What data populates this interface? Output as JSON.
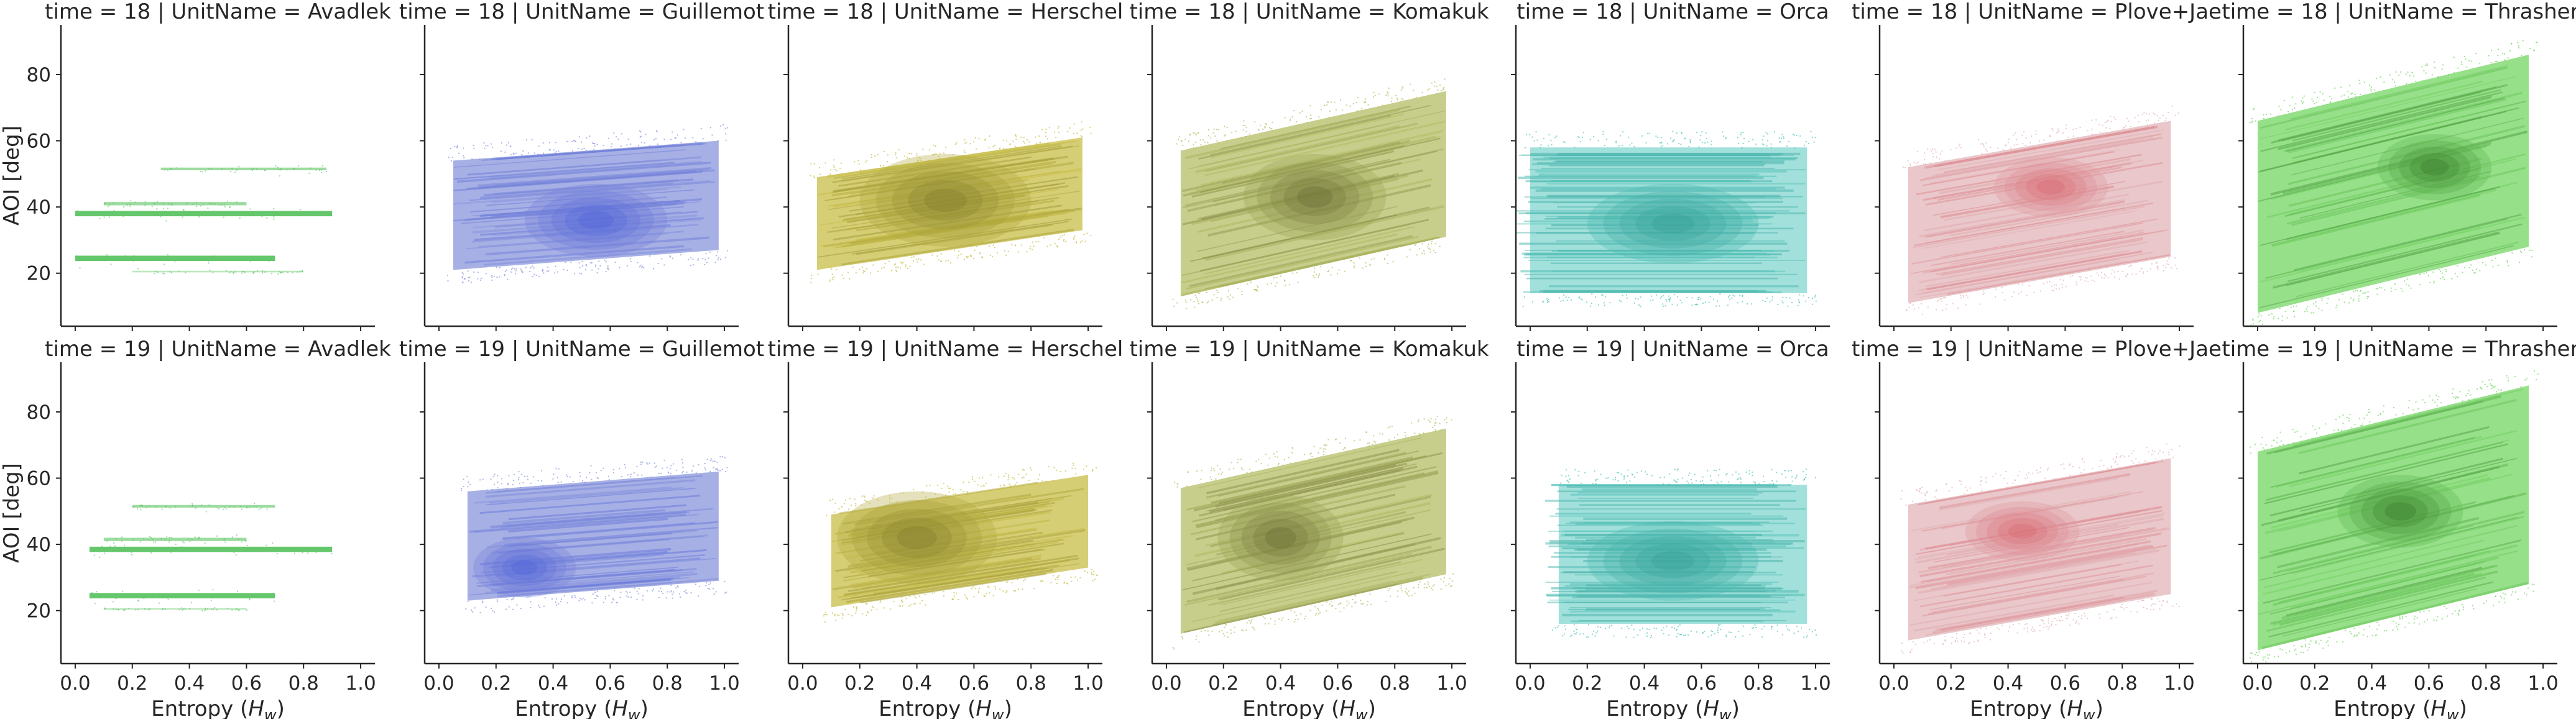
{
  "chart_data": {
    "type": "scatter",
    "xlabel": "Entropy (H_w)",
    "xlabel_parts": {
      "prefix": "Entropy (",
      "var": "H",
      "sub": "w",
      "suffix": ")"
    },
    "ylabel": "AOI [deg]",
    "xlim": [
      -0.05,
      1.05
    ],
    "ylim": [
      4,
      95
    ],
    "xticks": [
      0.0,
      0.2,
      0.4,
      0.6,
      0.8,
      1.0
    ],
    "xtick_labels": [
      "0.0",
      "0.2",
      "0.4",
      "0.6",
      "0.8",
      "1.0"
    ],
    "yticks": [
      20,
      40,
      60,
      80
    ],
    "ytick_labels": [
      "20",
      "40",
      "60",
      "80"
    ],
    "grid": false,
    "rows": [
      18,
      19
    ],
    "units": [
      {
        "name": "Avadlek",
        "color": "#5cc463",
        "style": "bands",
        "bands": [
          {
            "time": 18,
            "y": 24.5,
            "x0": 0.0,
            "x1": 0.7,
            "w": 1.6,
            "alpha": 0.95
          },
          {
            "time": 18,
            "y": 38,
            "x0": 0.0,
            "x1": 0.9,
            "w": 1.6,
            "alpha": 0.95
          },
          {
            "time": 18,
            "y": 41,
            "x0": 0.1,
            "x1": 0.6,
            "w": 1.0,
            "alpha": 0.6
          },
          {
            "time": 18,
            "y": 51.5,
            "x0": 0.3,
            "x1": 0.88,
            "w": 0.8,
            "alpha": 0.6
          },
          {
            "time": 18,
            "y": 20.5,
            "x0": 0.2,
            "x1": 0.8,
            "w": 0.5,
            "alpha": 0.4
          },
          {
            "time": 19,
            "y": 24.5,
            "x0": 0.05,
            "x1": 0.7,
            "w": 1.6,
            "alpha": 0.95
          },
          {
            "time": 19,
            "y": 38.5,
            "x0": 0.05,
            "x1": 0.9,
            "w": 1.6,
            "alpha": 0.95
          },
          {
            "time": 19,
            "y": 41.5,
            "x0": 0.1,
            "x1": 0.6,
            "w": 1.0,
            "alpha": 0.6
          },
          {
            "time": 19,
            "y": 51.5,
            "x0": 0.2,
            "x1": 0.7,
            "w": 0.8,
            "alpha": 0.6
          },
          {
            "time": 19,
            "y": 20.5,
            "x0": 0.1,
            "x1": 0.6,
            "w": 0.5,
            "alpha": 0.4
          }
        ]
      },
      {
        "name": "Guillemot",
        "color": "#8a96dc",
        "dark": "#3d52d8",
        "style": "cloud",
        "t18": {
          "xmin": 0.05,
          "xmax": 0.98,
          "ymin": 21,
          "ymax": 60,
          "skew": 6,
          "cx": 0.55,
          "cy": 36,
          "rx": 0.25,
          "ry": 11
        },
        "t19": {
          "xmin": 0.1,
          "xmax": 0.98,
          "ymin": 23,
          "ymax": 62,
          "skew": 6,
          "cx": 0.3,
          "cy": 33,
          "rx": 0.18,
          "ry": 9
        }
      },
      {
        "name": "Herschel",
        "color": "#c8be46",
        "dark": "#6e6a28",
        "style": "cloud",
        "t18": {
          "xmin": 0.05,
          "xmax": 0.98,
          "ymin": 21,
          "ymax": 61,
          "skew": 12,
          "cx": 0.5,
          "cy": 42,
          "rx": 0.3,
          "ry": 14
        },
        "t19": {
          "xmin": 0.1,
          "xmax": 1.0,
          "ymin": 21,
          "ymax": 61,
          "skew": 12,
          "cx": 0.4,
          "cy": 42,
          "rx": 0.28,
          "ry": 14
        }
      },
      {
        "name": "Komakuk",
        "color": "#b4bd64",
        "dark": "#555628",
        "style": "cloud",
        "t18": {
          "xmin": 0.05,
          "xmax": 0.98,
          "ymin": 13,
          "ymax": 75,
          "skew": 18,
          "cx": 0.52,
          "cy": 43,
          "rx": 0.25,
          "ry": 13
        },
        "t19": {
          "xmin": 0.05,
          "xmax": 0.98,
          "ymin": 13,
          "ymax": 75,
          "skew": 18,
          "cx": 0.4,
          "cy": 42,
          "rx": 0.22,
          "ry": 13
        }
      },
      {
        "name": "Orca",
        "color": "#56c6bd",
        "dark": "#2e948c",
        "style": "streaks",
        "t18": {
          "xmin": 0.0,
          "xmax": 0.97,
          "ymin": 14,
          "ymax": 58,
          "skew": 0,
          "cx": 0.5,
          "cy": 35,
          "rx": 0.3,
          "ry": 12
        },
        "t19": {
          "xmin": 0.1,
          "xmax": 0.97,
          "ymin": 16,
          "ymax": 58,
          "skew": 0,
          "cx": 0.5,
          "cy": 35,
          "rx": 0.3,
          "ry": 12
        }
      },
      {
        "name": "Plove+Jae",
        "color": "#e2b4b8",
        "dark": "#d8505a",
        "style": "cloud",
        "t18": {
          "xmin": 0.05,
          "xmax": 0.97,
          "ymin": 11,
          "ymax": 66,
          "skew": 14,
          "cx": 0.55,
          "cy": 46,
          "rx": 0.2,
          "ry": 9
        },
        "t19": {
          "xmin": 0.05,
          "xmax": 0.97,
          "ymin": 11,
          "ymax": 66,
          "skew": 14,
          "cx": 0.45,
          "cy": 44,
          "rx": 0.2,
          "ry": 9
        }
      },
      {
        "name": "Thrasher",
        "color": "#74d563",
        "dark": "#27621e",
        "style": "cloud",
        "t18": {
          "xmin": 0.0,
          "xmax": 0.95,
          "ymin": 8,
          "ymax": 86,
          "skew": 20,
          "cx": 0.62,
          "cy": 52,
          "rx": 0.2,
          "ry": 10
        },
        "t19": {
          "xmin": 0.0,
          "xmax": 0.95,
          "ymin": 8,
          "ymax": 88,
          "skew": 20,
          "cx": 0.5,
          "cy": 50,
          "rx": 0.22,
          "ry": 11
        }
      }
    ]
  }
}
